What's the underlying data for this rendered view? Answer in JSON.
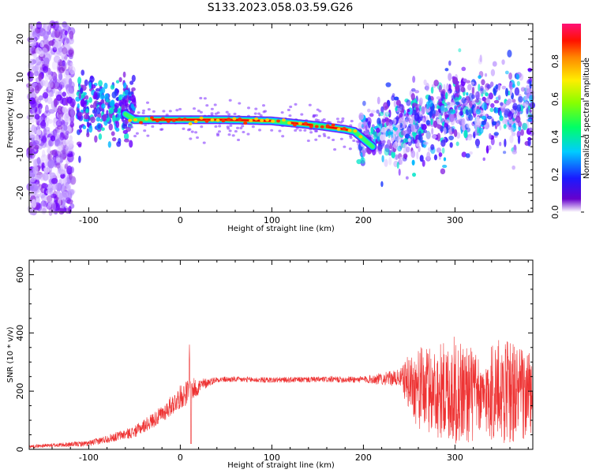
{
  "title": "S133.2023.058.03.59.G26",
  "chart_data": [
    {
      "type": "heatmap",
      "xlabel": "Height of straight line (km)",
      "ylabel": "Frequency (Hz)",
      "xlim": [
        -165,
        385
      ],
      "ylim": [
        -25,
        24
      ],
      "xticks": [
        -100,
        0,
        100,
        200,
        300
      ],
      "yticks": [
        -20,
        -10,
        0,
        10,
        20
      ],
      "xtick_labels": [
        "-100",
        "0",
        "100",
        "200",
        "300"
      ],
      "ytick_labels": [
        "-20",
        "-10",
        "0",
        "10",
        "20"
      ],
      "colorbar": {
        "label": "Normalized spectral amplitude",
        "range": [
          0,
          1
        ],
        "ticks": [
          0.0,
          0.2,
          0.4,
          0.6,
          0.8
        ],
        "tick_labels": [
          "0.0",
          "0.2",
          "0.4",
          "0.6",
          "0.8"
        ]
      },
      "ridge": {
        "x": [
          -60,
          -50,
          -40,
          0,
          50,
          100,
          150,
          180,
          190,
          200,
          210
        ],
        "y": [
          0.5,
          -1,
          -1,
          -1,
          -1,
          -1.3,
          -2.5,
          -3.5,
          -4,
          -6,
          -8
        ]
      }
    },
    {
      "type": "line",
      "xlabel": "Height of straight line (km)",
      "ylabel": "SNR (10 * v/v)",
      "xlim": [
        -165,
        385
      ],
      "ylim": [
        0,
        650
      ],
      "xticks": [
        -100,
        0,
        100,
        200,
        300
      ],
      "yticks": [
        0,
        200,
        400,
        600
      ],
      "xtick_labels": [
        "-100",
        "0",
        "100",
        "200",
        "300"
      ],
      "ytick_labels": [
        "0",
        "200",
        "400",
        "600"
      ],
      "color": "#ee3333",
      "envelope": {
        "x": [
          -165,
          -100,
          -50,
          -20,
          0,
          10,
          20,
          30,
          40,
          60,
          100,
          150,
          200,
          240,
          250,
          260,
          280,
          300,
          320,
          330,
          340,
          360,
          385
        ],
        "mean": [
          10,
          20,
          60,
          120,
          180,
          200,
          215,
          230,
          240,
          240,
          238,
          240,
          240,
          245,
          230,
          210,
          200,
          200,
          190,
          170,
          200,
          200,
          180
        ],
        "spread": [
          5,
          10,
          20,
          30,
          40,
          45,
          30,
          15,
          10,
          10,
          10,
          10,
          12,
          30,
          100,
          140,
          160,
          190,
          170,
          100,
          180,
          180,
          150
        ]
      }
    }
  ]
}
